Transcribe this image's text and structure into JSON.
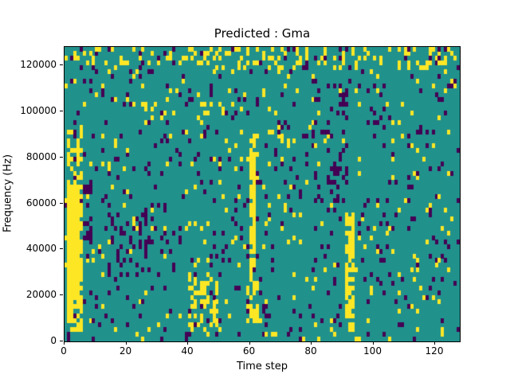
{
  "chart_data": {
    "type": "heatmap",
    "title": "Predicted : Gma",
    "xlabel": "Time step",
    "ylabel": "Frequency (Hz)",
    "xlim": [
      0,
      128
    ],
    "ylim": [
      0,
      128000
    ],
    "x_ticks": [
      0,
      20,
      40,
      60,
      80,
      100,
      120
    ],
    "y_ticks": [
      0,
      20000,
      40000,
      60000,
      80000,
      100000,
      120000
    ],
    "grid": {
      "cols": 128,
      "rows": 64
    },
    "colormap": {
      "name": "viridis-3-level",
      "background": "#21918c",
      "high": "#fde725",
      "low": "#440154"
    },
    "legend": "none",
    "pattern": {
      "seed": 42,
      "base_density": {
        "high": 0.045,
        "low": 0.05
      },
      "features": [
        {
          "shape": "band",
          "value": "high",
          "x": [
            1,
            6
          ],
          "y": [
            4000,
            92000
          ],
          "density": 0.6
        },
        {
          "shape": "band",
          "value": "high",
          "x": [
            1,
            5
          ],
          "y": [
            15000,
            62000
          ],
          "density": 0.95
        },
        {
          "shape": "band",
          "value": "low",
          "x": [
            6,
            9
          ],
          "y": [
            40000,
            72000
          ],
          "density": 0.3
        },
        {
          "shape": "band",
          "value": "low",
          "x": [
            14,
            30
          ],
          "y": [
            28000,
            60000
          ],
          "density": 0.15
        },
        {
          "shape": "band",
          "value": "high",
          "x": [
            40,
            50
          ],
          "y": [
            6000,
            30000
          ],
          "density": 0.3
        },
        {
          "shape": "band",
          "value": "high",
          "x": [
            60,
            62
          ],
          "y": [
            30000,
            90000
          ],
          "density": 0.7
        },
        {
          "shape": "band",
          "value": "high",
          "x": [
            59,
            63
          ],
          "y": [
            8000,
            30000
          ],
          "density": 0.35
        },
        {
          "shape": "band",
          "value": "high",
          "x": [
            91,
            94
          ],
          "y": [
            5000,
            55000
          ],
          "density": 0.75
        },
        {
          "shape": "band",
          "value": "low",
          "x": [
            80,
            92
          ],
          "y": [
            60000,
            110000
          ],
          "density": 0.12
        },
        {
          "shape": "band",
          "value": "high",
          "x": [
            0,
            128
          ],
          "y": [
            118000,
            128000
          ],
          "density": 0.18
        }
      ]
    }
  }
}
